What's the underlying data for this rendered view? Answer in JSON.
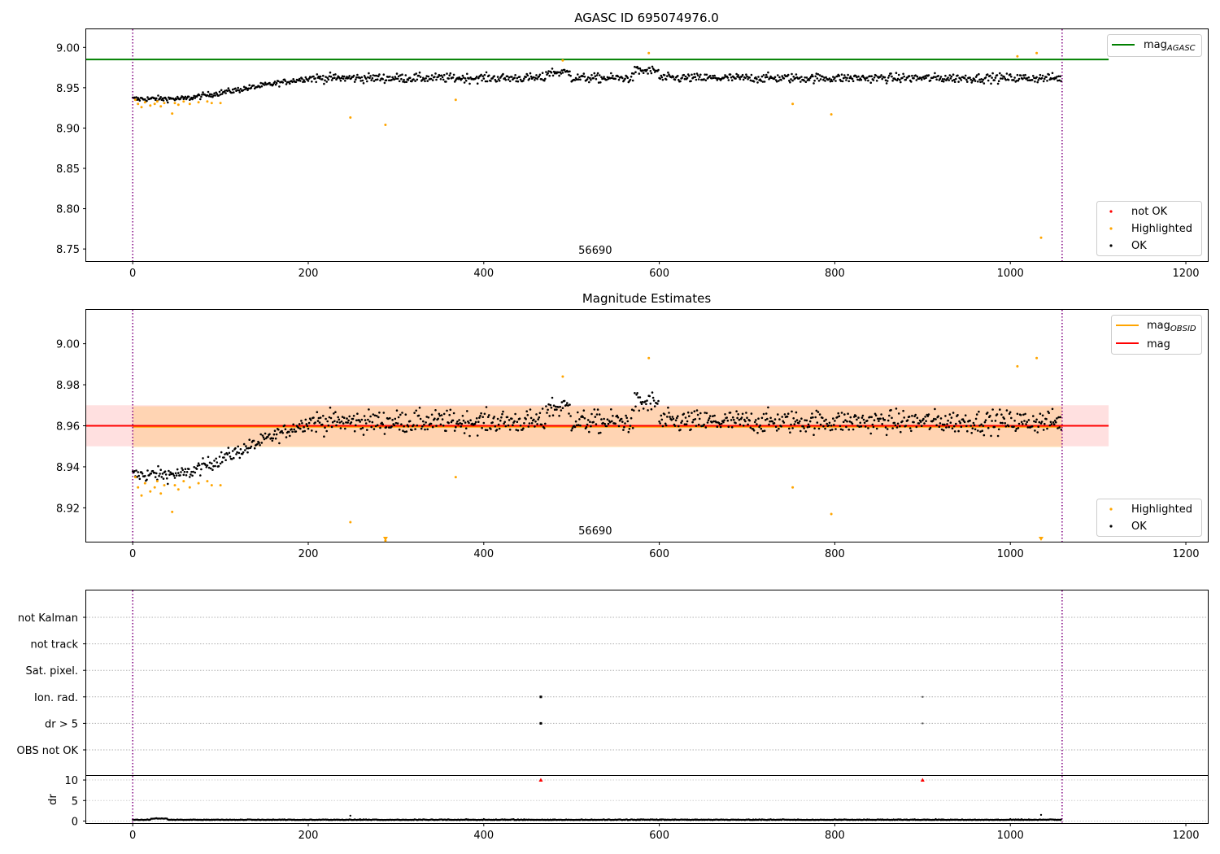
{
  "chart_data": [
    {
      "panel": "top",
      "type": "scatter",
      "title": "AGASC ID 695074976.0",
      "xlabel": "",
      "ylabel": "",
      "xlim": [
        -53,
        1225
      ],
      "ylim": [
        8.735,
        9.0225
      ],
      "xticks": [
        0,
        200,
        400,
        600,
        800,
        1000,
        1200
      ],
      "xtick_labels": [
        "0",
        "200",
        "400",
        "600",
        "800",
        "1000",
        "1200"
      ],
      "yticks": [
        8.75,
        8.8,
        8.85,
        8.9,
        8.95,
        9.0
      ],
      "ytick_labels": [
        "8.75",
        "8.80",
        "8.85",
        "8.90",
        "8.95",
        "9.00"
      ],
      "annotation": "56690",
      "annotation_x": 527,
      "obs_bounds": [
        0,
        1059
      ],
      "mag_agasc": 8.985,
      "mag_agasc_range": [
        -53,
        1112
      ],
      "legend_lines": {
        "placement": "top-right",
        "label_main": "mag",
        "label_sub": "AGASC",
        "color": "#008000"
      },
      "legend_points": {
        "placement": "bottom-right",
        "entries": [
          {
            "label": "not OK",
            "color": "#ff0000"
          },
          {
            "label": "Highlighted",
            "color": "#ffa500"
          },
          {
            "label": "OK",
            "color": "#000000"
          }
        ]
      },
      "trend": {
        "start": 8.936,
        "plateau": 8.962,
        "rise_until": 200
      },
      "n_points": 1059,
      "highlighted": [
        {
          "x": 3,
          "y": 8.935
        },
        {
          "x": 6,
          "y": 8.93
        },
        {
          "x": 10,
          "y": 8.926
        },
        {
          "x": 14,
          "y": 8.932
        },
        {
          "x": 20,
          "y": 8.928
        },
        {
          "x": 25,
          "y": 8.93
        },
        {
          "x": 28,
          "y": 8.933
        },
        {
          "x": 32,
          "y": 8.927
        },
        {
          "x": 36,
          "y": 8.931
        },
        {
          "x": 45,
          "y": 8.918
        },
        {
          "x": 48,
          "y": 8.931
        },
        {
          "x": 52,
          "y": 8.929
        },
        {
          "x": 58,
          "y": 8.933
        },
        {
          "x": 65,
          "y": 8.93
        },
        {
          "x": 75,
          "y": 8.932
        },
        {
          "x": 85,
          "y": 8.933
        },
        {
          "x": 90,
          "y": 8.931
        },
        {
          "x": 100,
          "y": 8.931
        },
        {
          "x": 248,
          "y": 8.913
        },
        {
          "x": 288,
          "y": 8.904
        },
        {
          "x": 368,
          "y": 8.935
        },
        {
          "x": 490,
          "y": 8.984
        },
        {
          "x": 588,
          "y": 8.993
        },
        {
          "x": 752,
          "y": 8.93
        },
        {
          "x": 796,
          "y": 8.917
        },
        {
          "x": 1008,
          "y": 8.989
        },
        {
          "x": 1030,
          "y": 8.993
        },
        {
          "x": 1035,
          "y": 8.764
        }
      ]
    },
    {
      "panel": "middle",
      "type": "scatter",
      "title": "Magnitude Estimates",
      "xlabel": "",
      "ylabel": "",
      "xlim": [
        -53,
        1225
      ],
      "ylim": [
        8.9035,
        9.0165
      ],
      "xticks": [
        0,
        200,
        400,
        600,
        800,
        1000,
        1200
      ],
      "xtick_labels": [
        "0",
        "200",
        "400",
        "600",
        "800",
        "1000",
        "1200"
      ],
      "yticks": [
        8.92,
        8.94,
        8.96,
        8.98,
        9.0
      ],
      "ytick_labels": [
        "8.92",
        "8.94",
        "8.96",
        "8.98",
        "9.00"
      ],
      "annotation": "56690",
      "annotation_x": 527,
      "obs_bounds": [
        0,
        1059
      ],
      "mag": 8.96,
      "mag_band": [
        8.95,
        8.97
      ],
      "mag_range": [
        -53,
        1112
      ],
      "mag_obsid": 8.9595,
      "mag_obsid_band": [
        8.9495,
        8.9695
      ],
      "mag_obsid_range": [
        0,
        1059
      ],
      "legend_lines": {
        "placement": "top-right",
        "entries": [
          {
            "label_main": "mag",
            "label_sub": "OBSID",
            "color": "#ffa500"
          },
          {
            "label_main": "mag",
            "label_sub": "",
            "color": "#ff0000"
          }
        ]
      },
      "legend_points": {
        "placement": "bottom-right",
        "entries": [
          {
            "label": "Highlighted",
            "color": "#ffa500"
          },
          {
            "label": "OK",
            "color": "#000000"
          }
        ]
      },
      "highlighted_off_scale": [
        {
          "x": 288
        },
        {
          "x": 1035
        }
      ]
    },
    {
      "panel": "flags",
      "type": "scatter",
      "xlim": [
        -53,
        1225
      ],
      "obs_bounds": [
        0,
        1059
      ],
      "categories": [
        "not Kalman",
        "not track",
        "Sat. pixel.",
        "Ion. rad.",
        "dr > 5",
        "OBS not OK"
      ],
      "flagged": [
        {
          "category": "Ion. rad.",
          "x": [
            465,
            900
          ]
        },
        {
          "category": "dr > 5",
          "x": [
            465,
            900
          ]
        }
      ]
    },
    {
      "panel": "dr",
      "type": "scatter",
      "xlim": [
        -53,
        1225
      ],
      "ylim": [
        -0.5,
        11
      ],
      "ylabel": "dr",
      "yticks": [
        0,
        5,
        10
      ],
      "ytick_labels": [
        "0",
        "5",
        "10"
      ],
      "xticks": [
        0,
        200,
        400,
        600,
        800,
        1000,
        1200
      ],
      "xtick_labels": [
        "0",
        "200",
        "400",
        "600",
        "800",
        "1000",
        "1200"
      ],
      "obs_bounds": [
        0,
        1059
      ],
      "clipped": [
        {
          "x": 465,
          "y": 10
        },
        {
          "x": 900,
          "y": 10
        }
      ],
      "spikes": [
        {
          "x": 248,
          "y": 1.3
        },
        {
          "x": 1035,
          "y": 1.5
        }
      ]
    }
  ]
}
